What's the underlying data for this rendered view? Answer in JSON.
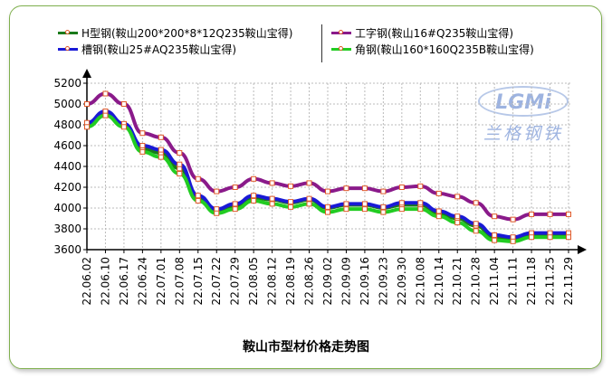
{
  "chart_data": {
    "type": "line",
    "title": "鞍山市型材价格走势图",
    "categories": [
      "22.06.02",
      "22.06.10",
      "22.06.17",
      "22.06.24",
      "22.07.01",
      "22.07.08",
      "22.07.15",
      "22.07.22",
      "22.07.29",
      "22.08.05",
      "22.08.12",
      "22.08.19",
      "22.08.26",
      "22.09.02",
      "22.09.09",
      "22.09.16",
      "22.09.23",
      "22.09.30",
      "22.10.08",
      "22.10.14",
      "22.10.21",
      "22.10.28",
      "22.11.04",
      "22.11.11",
      "22.11.18",
      "22.11.25",
      "22.11.29"
    ],
    "tick_labels": [
      "22.06.02",
      "22.06.10",
      "22.06.17",
      "22.06.24",
      "22.07.01",
      "22.07.08",
      "22.07.15",
      "22.07.22",
      "22.07.29",
      "22.08.05",
      "22.08.12",
      "22.08.19",
      "22.08.26",
      "22.09.02",
      "22.09.09",
      "22.09.16",
      "22.09.23",
      "22.09.30",
      "22.10.08",
      "22.10.14",
      "22.10.21",
      "22.10.28",
      "22.11.04",
      "22.11.11",
      "22.11.18",
      "22.11.25",
      "22.11.29"
    ],
    "ylim": [
      3600,
      5200
    ],
    "yticks": [
      3600,
      3800,
      4000,
      4200,
      4400,
      4600,
      4800,
      5000,
      5200
    ],
    "grid": true,
    "legend_position": "top",
    "series": [
      {
        "name": "H型钢(鞍山200*200*8*12Q235鞍山宝得)",
        "color": "#1a7a1a",
        "values": [
          4800,
          4920,
          4800,
          4570,
          4530,
          4380,
          4100,
          3980,
          4020,
          4100,
          4080,
          4050,
          4080,
          4000,
          4030,
          4030,
          4000,
          4030,
          4030,
          3950,
          3900,
          3830,
          3720,
          3700,
          3750,
          3750,
          3750
        ]
      },
      {
        "name": "工字钢(鞍山16#Q235鞍山宝得)",
        "color": "#8a1a8a",
        "values": [
          5000,
          5100,
          5000,
          4720,
          4680,
          4530,
          4280,
          4160,
          4200,
          4280,
          4240,
          4210,
          4240,
          4160,
          4190,
          4190,
          4160,
          4200,
          4210,
          4140,
          4110,
          4050,
          3920,
          3890,
          3940,
          3940,
          3940
        ]
      },
      {
        "name": "槽钢(鞍山25#AQ235鞍山宝得)",
        "color": "#1a1ad6",
        "values": [
          4820,
          4930,
          4810,
          4600,
          4560,
          4420,
          4120,
          3990,
          4040,
          4120,
          4090,
          4060,
          4090,
          4010,
          4040,
          4040,
          4010,
          4050,
          4050,
          3970,
          3920,
          3850,
          3740,
          3720,
          3760,
          3760,
          3760
        ]
      },
      {
        "name": "角钢(鞍山160*160Q235B鞍山宝得)",
        "color": "#22cc22",
        "values": [
          4780,
          4890,
          4780,
          4540,
          4490,
          4330,
          4070,
          3950,
          3990,
          4070,
          4040,
          4010,
          4040,
          3960,
          3990,
          3990,
          3960,
          3990,
          3990,
          3920,
          3860,
          3780,
          3690,
          3680,
          3720,
          3720,
          3720
        ]
      }
    ]
  },
  "legend": {
    "item1": "H型钢(鞍山200*200*8*12Q235鞍山宝得)",
    "item2": "工字钢(鞍山16#Q235鞍山宝得)",
    "item3": "槽钢(鞍山25#AQ235鞍山宝得)",
    "item4": "角钢(鞍山160*160Q235B鞍山宝得)"
  },
  "watermark": {
    "logo": "LGMi",
    "text": "兰格钢铁"
  },
  "colors": {
    "axis": "#000000",
    "grid": "#bbbbbb",
    "marker_border": "#e05a2a",
    "frame_border": "#7fb04e"
  }
}
